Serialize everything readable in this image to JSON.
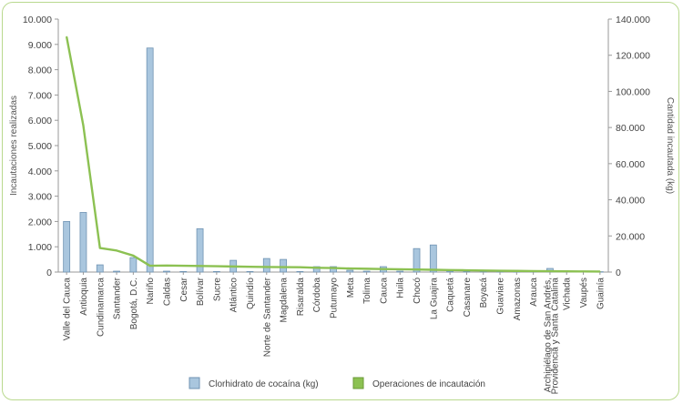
{
  "chart_data": {
    "type": "bar",
    "categories": [
      "Valle del Cauca",
      "Antioquia",
      "Cundinamarca",
      "Santander",
      "Bogotá, D.C.",
      "Nariño",
      "Caldas",
      "Cesar",
      "Bolívar",
      "Sucre",
      "Atlántico",
      "Quindío",
      "Norte de Santander",
      "Magdalena",
      "Risaralda",
      "Córdoba",
      "Putumayo",
      "Meta",
      "Tolima",
      "Cauca",
      "Huila",
      "Chocó",
      "La Guajira",
      "Caquetá",
      "Casanare",
      "Boyacá",
      "Guaviare",
      "Amazonas",
      "Arauca",
      "Archipiélago de San Andrés, Providencia y Santa Catalina",
      "Vichada",
      "Vaupés",
      "Guainía"
    ],
    "series": [
      {
        "name": "Clorhidrato de cocaína (kg)",
        "type": "bar",
        "axis": "right",
        "color": "#a9c6de",
        "values": [
          28000,
          33000,
          4000,
          500,
          8000,
          124000,
          500,
          300,
          24000,
          300,
          6500,
          300,
          7500,
          7000,
          300,
          3000,
          3000,
          1000,
          500,
          3000,
          500,
          13000,
          15000,
          500,
          300,
          300,
          300,
          200,
          300,
          2000,
          300,
          300,
          200
        ]
      },
      {
        "name": "Operaciones de incautación",
        "type": "line",
        "axis": "left",
        "color": "#8cc152",
        "values": [
          9300,
          5800,
          950,
          850,
          650,
          250,
          260,
          250,
          240,
          230,
          220,
          210,
          200,
          195,
          190,
          170,
          160,
          140,
          130,
          120,
          110,
          100,
          90,
          80,
          70,
          60,
          50,
          45,
          40,
          35,
          30,
          25,
          20
        ]
      }
    ],
    "y_left": {
      "label": "Incautaciones realizadas",
      "range": [
        0,
        10000
      ],
      "ticks": [
        "0",
        "1.000",
        "2.000",
        "3.000",
        "4.000",
        "5.000",
        "6.000",
        "7.000",
        "8.000",
        "9.000",
        "10.000"
      ]
    },
    "y_right": {
      "label": "Cantidad incautada (kg)",
      "range": [
        0,
        140000
      ],
      "ticks": [
        "0",
        "20.000",
        "40.000",
        "60.000",
        "80.000",
        "100.000",
        "120.000",
        "140.000"
      ]
    },
    "grid": false,
    "legend": "bottom-center"
  }
}
